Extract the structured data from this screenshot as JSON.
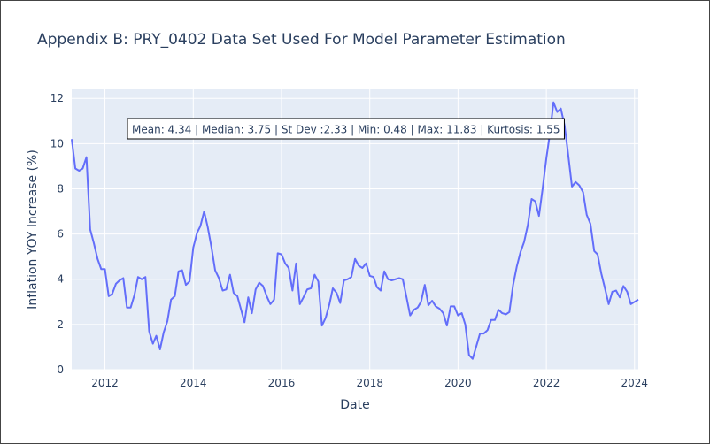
{
  "chart_data": {
    "type": "line",
    "title": "Appendix B: PRY_0402 Data Set Used For Model Parameter Estimation",
    "xlabel": "Date",
    "ylabel": "Inflation YOY Increase (%)",
    "xlim": [
      "2011-04-01",
      "2024-02-01"
    ],
    "ylim": [
      0,
      12.4
    ],
    "x_ticks": [
      "2012",
      "2014",
      "2016",
      "2018",
      "2020",
      "2022",
      "2024"
    ],
    "y_ticks": [
      "0",
      "2",
      "4",
      "6",
      "8",
      "10",
      "12"
    ],
    "grid": true,
    "line_color": "#636efa",
    "plot_bg": "#e5ecf6",
    "annotation": "Mean: 4.34 | Median: 3.75 | St Dev :2.33 | Min: 0.48 | Max: 11.83 | Kurtosis: 1.55",
    "series": [
      {
        "x": [
          "2011-04",
          "2011-05",
          "2011-06",
          "2011-07",
          "2011-08",
          "2011-09",
          "2011-10",
          "2011-11",
          "2011-12",
          "2012-01",
          "2012-02",
          "2012-03",
          "2012-04",
          "2012-05",
          "2012-06",
          "2012-07",
          "2012-08",
          "2012-09",
          "2012-10",
          "2012-11",
          "2012-12",
          "2013-01",
          "2013-02",
          "2013-03",
          "2013-04",
          "2013-05",
          "2013-06",
          "2013-07",
          "2013-08",
          "2013-09",
          "2013-10",
          "2013-11",
          "2013-12",
          "2014-01",
          "2014-02",
          "2014-03",
          "2014-04",
          "2014-05",
          "2014-06",
          "2014-07",
          "2014-08",
          "2014-09",
          "2014-10",
          "2014-11",
          "2014-12",
          "2015-01",
          "2015-02",
          "2015-03",
          "2015-04",
          "2015-05",
          "2015-06",
          "2015-07",
          "2015-08",
          "2015-09",
          "2015-10",
          "2015-11",
          "2015-12",
          "2016-01",
          "2016-02",
          "2016-03",
          "2016-04",
          "2016-05",
          "2016-06",
          "2016-07",
          "2016-08",
          "2016-09",
          "2016-10",
          "2016-11",
          "2016-12",
          "2017-01",
          "2017-02",
          "2017-03",
          "2017-04",
          "2017-05",
          "2017-06",
          "2017-07",
          "2017-08",
          "2017-09",
          "2017-10",
          "2017-11",
          "2017-12",
          "2018-01",
          "2018-02",
          "2018-03",
          "2018-04",
          "2018-05",
          "2018-06",
          "2018-07",
          "2018-08",
          "2018-09",
          "2018-10",
          "2018-11",
          "2018-12",
          "2019-01",
          "2019-02",
          "2019-03",
          "2019-04",
          "2019-05",
          "2019-06",
          "2019-07",
          "2019-08",
          "2019-09",
          "2019-10",
          "2019-11",
          "2019-12",
          "2020-01",
          "2020-02",
          "2020-03",
          "2020-04",
          "2020-05",
          "2020-06",
          "2020-07",
          "2020-08",
          "2020-09",
          "2020-10",
          "2020-11",
          "2020-12",
          "2021-01",
          "2021-02",
          "2021-03",
          "2021-04",
          "2021-05",
          "2021-06",
          "2021-07",
          "2021-08",
          "2021-09",
          "2021-10",
          "2021-11",
          "2021-12",
          "2022-01",
          "2022-02",
          "2022-03",
          "2022-04",
          "2022-05",
          "2022-06",
          "2022-07",
          "2022-08",
          "2022-09",
          "2022-10",
          "2022-11",
          "2022-12",
          "2023-01",
          "2023-02",
          "2023-03",
          "2023-04",
          "2023-05",
          "2023-06",
          "2023-07",
          "2023-08",
          "2023-09",
          "2023-10",
          "2023-11",
          "2023-12",
          "2024-01",
          "2024-02"
        ],
        "y": [
          10.2,
          8.9,
          8.8,
          8.9,
          9.4,
          6.2,
          5.6,
          4.9,
          4.45,
          4.45,
          3.25,
          3.35,
          3.8,
          3.95,
          4.05,
          2.75,
          2.75,
          3.3,
          4.1,
          4.0,
          4.1,
          1.7,
          1.15,
          1.5,
          0.9,
          1.65,
          2.15,
          3.1,
          3.25,
          4.35,
          4.4,
          3.75,
          3.9,
          5.4,
          6.05,
          6.35,
          7.0,
          6.3,
          5.4,
          4.4,
          4.05,
          3.5,
          3.55,
          4.2,
          3.4,
          3.25,
          2.65,
          2.1,
          3.2,
          2.5,
          3.55,
          3.85,
          3.7,
          3.25,
          2.9,
          3.1,
          5.15,
          5.1,
          4.7,
          4.5,
          3.5,
          4.7,
          2.9,
          3.2,
          3.55,
          3.6,
          4.2,
          3.9,
          1.95,
          2.3,
          2.9,
          3.6,
          3.4,
          2.95,
          3.95,
          4.0,
          4.1,
          4.9,
          4.6,
          4.5,
          4.7,
          4.15,
          4.1,
          3.65,
          3.5,
          4.35,
          4.0,
          3.95,
          4.0,
          4.05,
          4.0,
          3.2,
          2.4,
          2.65,
          2.75,
          3.0,
          3.75,
          2.85,
          3.05,
          2.8,
          2.7,
          2.5,
          1.95,
          2.8,
          2.8,
          2.4,
          2.5,
          2.0,
          0.65,
          0.48,
          1.05,
          1.6,
          1.6,
          1.75,
          2.2,
          2.2,
          2.65,
          2.5,
          2.45,
          2.55,
          3.75,
          4.55,
          5.2,
          5.65,
          6.4,
          7.55,
          7.45,
          6.8,
          8.0,
          9.35,
          10.5,
          11.83,
          11.4,
          11.55,
          10.8,
          9.5,
          8.1,
          8.3,
          8.15,
          7.85,
          6.85,
          6.45,
          5.25,
          5.1,
          4.25,
          3.6,
          2.9,
          3.45,
          3.5,
          3.2,
          3.7,
          3.45,
          2.9,
          3.0,
          3.1
        ]
      }
    ]
  }
}
